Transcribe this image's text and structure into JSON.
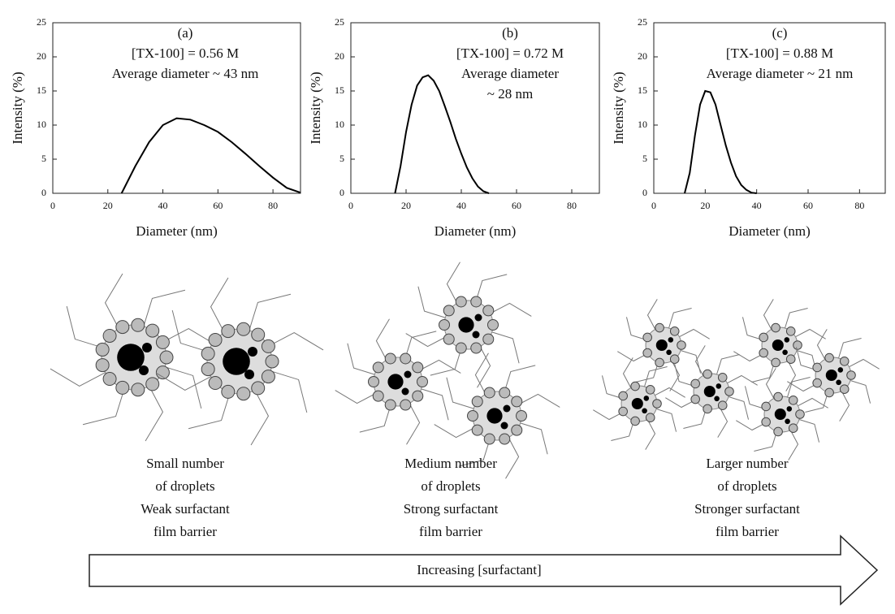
{
  "chart_data": [
    {
      "type": "line",
      "annotations": [
        "(a)",
        "[TX-100] = 0.56 M",
        "Average diameter ~ 43 nm"
      ],
      "x_label": "Diameter (nm)",
      "y_label": "Intensity (%)",
      "color": "#000000",
      "x": [
        25,
        30,
        35,
        40,
        45,
        50,
        55,
        60,
        65,
        70,
        75,
        80,
        85,
        90
      ],
      "values": [
        0,
        4,
        7.5,
        10,
        11,
        10.8,
        10,
        9,
        7.5,
        5.8,
        4,
        2.3,
        0.8,
        0.1
      ],
      "xlim": [
        0,
        90
      ],
      "xticks": [
        0,
        20,
        40,
        60,
        80
      ],
      "ylim": [
        0,
        25
      ],
      "yticks": [
        0,
        5,
        10,
        15,
        20,
        25
      ]
    },
    {
      "type": "line",
      "annotations": [
        "(b)",
        "[TX-100] = 0.72 M",
        "Average diameter",
        "~ 28 nm"
      ],
      "x_label": "Diameter (nm)",
      "y_label": "Intensity (%)",
      "color": "#000000",
      "x": [
        16,
        18,
        20,
        22,
        24,
        26,
        28,
        30,
        32,
        34,
        36,
        38,
        40,
        42,
        44,
        46,
        48,
        50
      ],
      "values": [
        0,
        4,
        9,
        13,
        15.8,
        17,
        17.3,
        16.5,
        15,
        12.8,
        10.5,
        8,
        5.8,
        3.8,
        2.2,
        1,
        0.3,
        0
      ],
      "xlim": [
        0,
        90
      ],
      "xticks": [
        0,
        20,
        40,
        60,
        80
      ],
      "ylim": [
        0,
        25
      ],
      "yticks": [
        0,
        5,
        10,
        15,
        20,
        25
      ]
    },
    {
      "type": "line",
      "annotations": [
        "(c)",
        "[TX-100] = 0.88 M",
        "Average diameter ~ 21 nm"
      ],
      "x_label": "Diameter (nm)",
      "y_label": "Intensity (%)",
      "color": "#000000",
      "x": [
        12,
        14,
        16,
        18,
        20,
        22,
        24,
        26,
        28,
        30,
        32,
        34,
        36,
        38,
        40
      ],
      "values": [
        0,
        3,
        8.5,
        13,
        15,
        14.8,
        13,
        10,
        7,
        4.5,
        2.5,
        1.2,
        0.5,
        0.1,
        0
      ],
      "xlim": [
        0,
        90
      ],
      "xticks": [
        0,
        20,
        40,
        60,
        80
      ],
      "ylim": [
        0,
        25
      ],
      "yticks": [
        0,
        5,
        10,
        15,
        20,
        25
      ]
    }
  ],
  "diagram": {
    "captions": [
      [
        "Small number",
        "of droplets",
        "Weak surfactant",
        "film barrier"
      ],
      [
        "Medium number",
        "of droplets",
        "Strong surfactant",
        "film barrier"
      ],
      [
        "Larger number",
        "of droplets",
        "Stronger surfactant",
        "film barrier"
      ]
    ],
    "arrow_label": "Increasing [surfactant]"
  }
}
